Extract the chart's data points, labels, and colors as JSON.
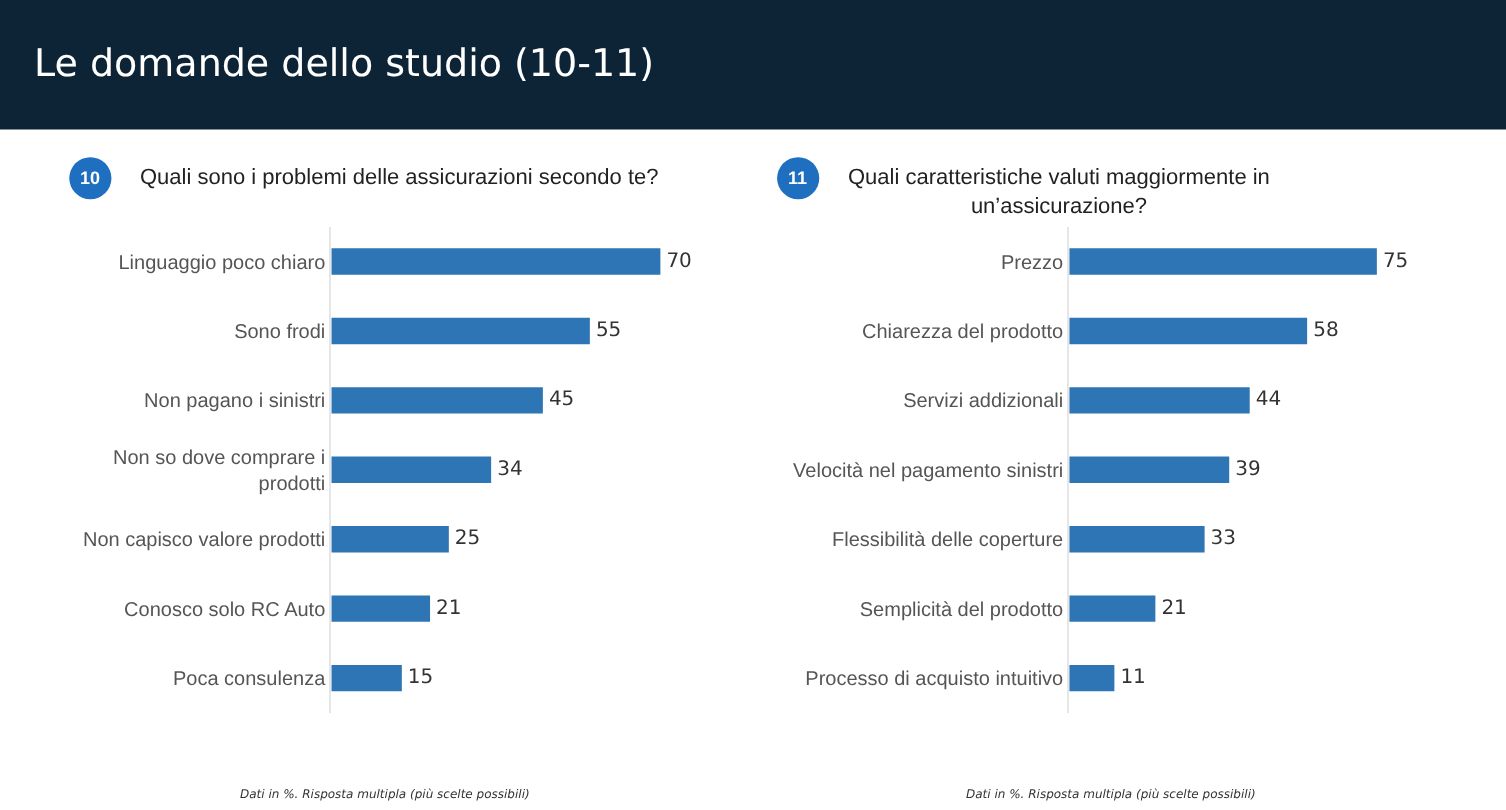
{
  "chart_data": [
    {
      "type": "other",
      "title": "Le domande dello studio (10-11)"
    },
    {
      "type": "bar",
      "orientation": "horizontal",
      "subtitle": "10",
      "title": "Quali sono i problemi delle assicurazioni secondo te?",
      "categories": [
        "Linguaggio poco chiaro",
        "Sono frodi",
        "Non pagano i sinistri",
        "Non so dove comprare i\nprodotti",
        "Non capisco valore prodotti",
        "Conosco solo RC Auto",
        "Poca consulenza"
      ],
      "values": [
        70,
        55,
        45,
        34,
        25,
        21,
        15
      ],
      "color": "#2e75b6",
      "data_labels": true,
      "annotations": [
        "Dati in %. Risposta multipla (più scelte possibili)"
      ]
    },
    {
      "type": "bar",
      "orientation": "horizontal",
      "subtitle": "11",
      "title": "Quali caratteristiche valuti maggiormente in\nun’assicurazione?",
      "categories": [
        "Prezzo",
        "Chiarezza del prodotto",
        "Servizi addizionali",
        "Velocità nel pagamento sinistri",
        "Flessibilità delle coperture",
        "Semplicità del prodotto",
        "Processo di acquisto intuitivo"
      ],
      "values": [
        75,
        58,
        44,
        39,
        33,
        21,
        11
      ],
      "color": "#2e75b6",
      "data_labels": true,
      "annotations": [
        "Dati in %. Risposta multipla (più scelte possibili)"
      ]
    }
  ]
}
